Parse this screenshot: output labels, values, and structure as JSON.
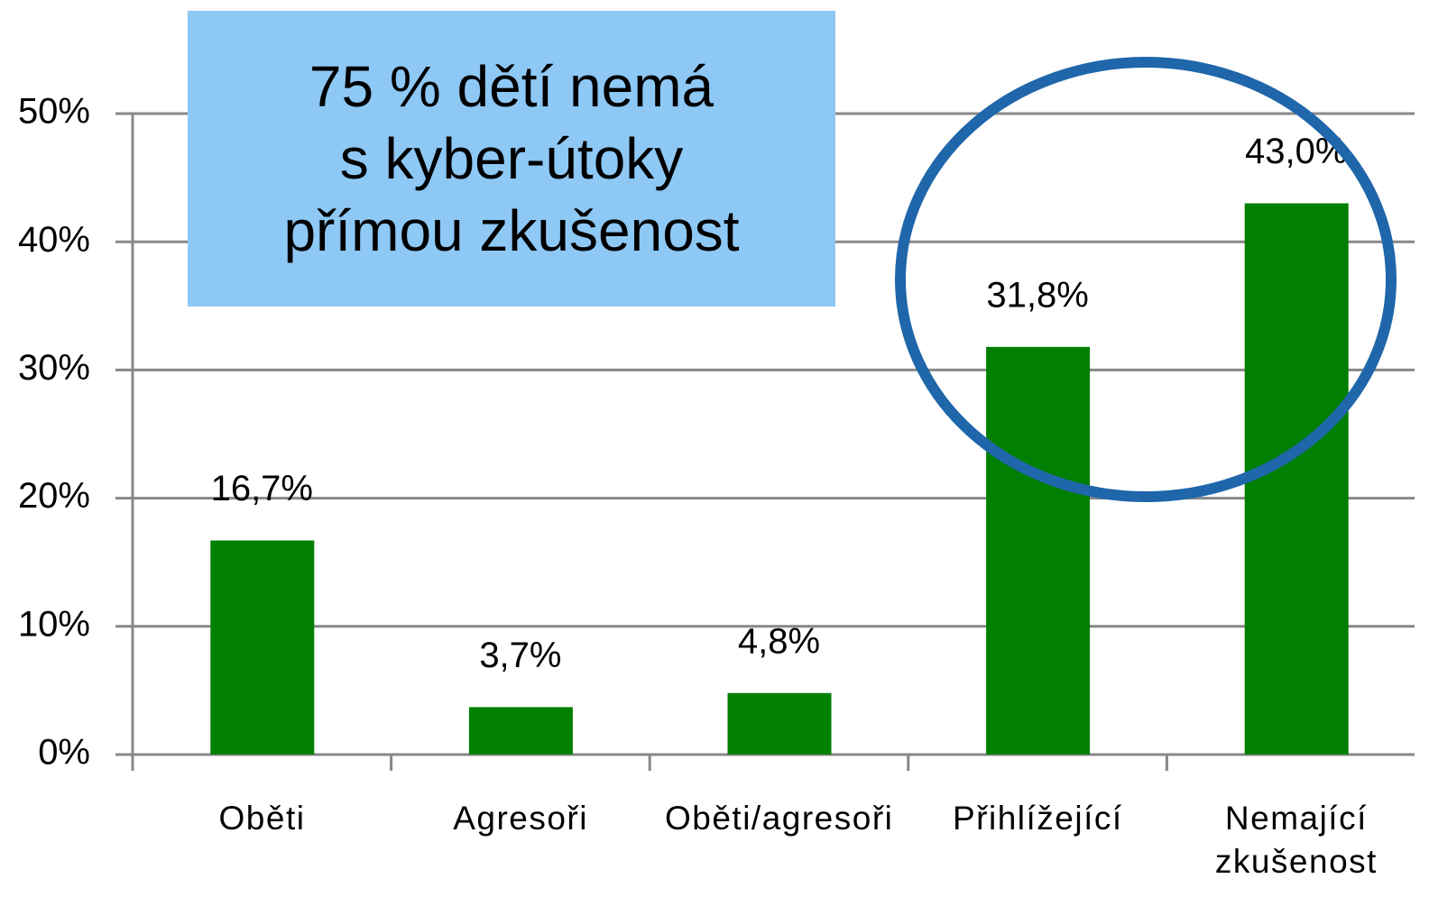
{
  "chart_data": {
    "type": "bar",
    "annotation": [
      "75 % dětí nemá",
      "s kyber-útoky",
      "přímou zkušenost"
    ],
    "categories": [
      "Oběti",
      "Agresoři",
      "Oběti/agresoři",
      "Přihlížející",
      "Nemající zkušenost"
    ],
    "values": [
      16.7,
      3.7,
      4.8,
      31.8,
      43.0
    ],
    "value_labels": [
      "16,7%",
      "3,7%",
      "4,8%",
      "31,8%",
      "43,0%"
    ],
    "color": "#007f00",
    "ylim": [
      0,
      50
    ],
    "yticks": [
      {
        "value": 0,
        "label": "0%"
      },
      {
        "value": 10,
        "label": "10%"
      },
      {
        "value": 20,
        "label": "20%"
      },
      {
        "value": 30,
        "label": "30%"
      },
      {
        "value": 40,
        "label": "40%"
      },
      {
        "value": 50,
        "label": "50%"
      }
    ],
    "grid": true
  }
}
